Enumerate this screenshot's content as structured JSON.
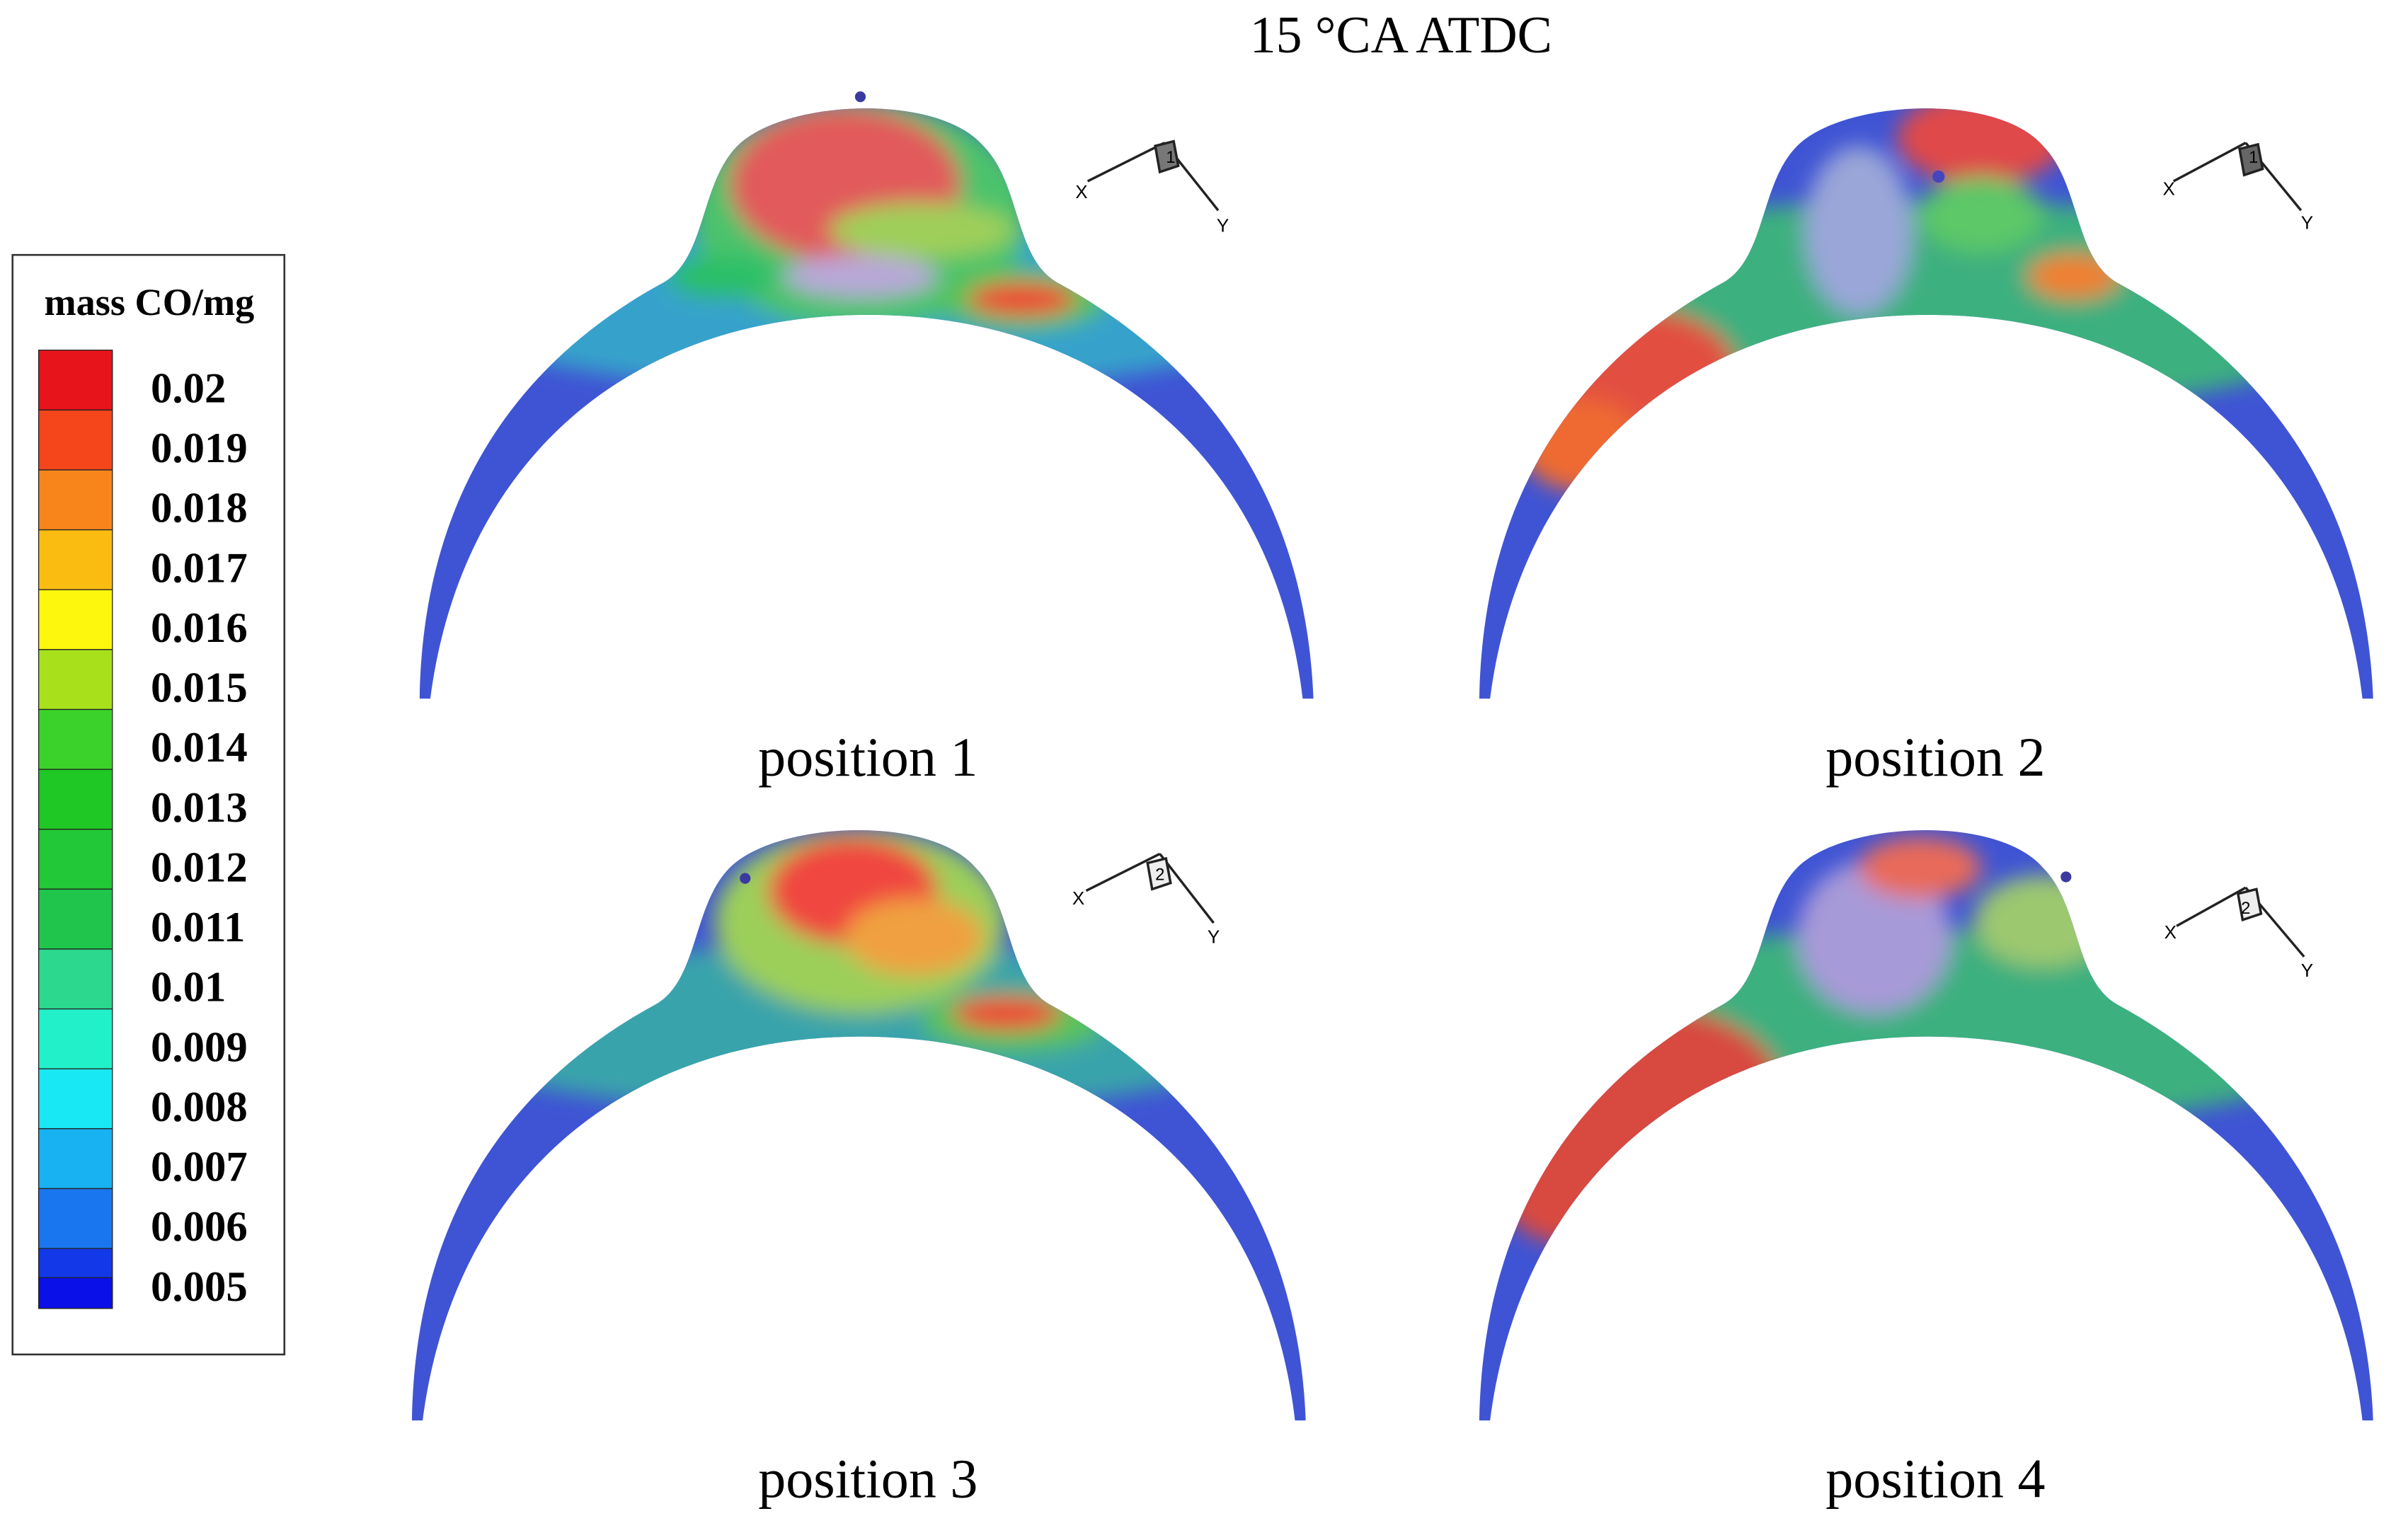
{
  "title": "15 °CA ATDC",
  "legend": {
    "title": "mass CO/mg",
    "labels": [
      "0.02",
      "0.019",
      "0.018",
      "0.017",
      "0.016",
      "0.015",
      "0.014",
      "0.013",
      "0.012",
      "0.011",
      "0.01",
      "0.009",
      "0.008",
      "0.007",
      "0.006",
      "0.005"
    ]
  },
  "panels": [
    {
      "caption": "position 1",
      "axes": {
        "x": "X",
        "y": "Y",
        "z": "1"
      }
    },
    {
      "caption": "position 2",
      "axes": {
        "x": "X",
        "y": "Y",
        "z": "1"
      }
    },
    {
      "caption": "position 3",
      "axes": {
        "x": "X",
        "y": "Y",
        "z": "2"
      }
    },
    {
      "caption": "position 4",
      "axes": {
        "x": "X",
        "y": "Y",
        "z": "2"
      }
    }
  ]
}
